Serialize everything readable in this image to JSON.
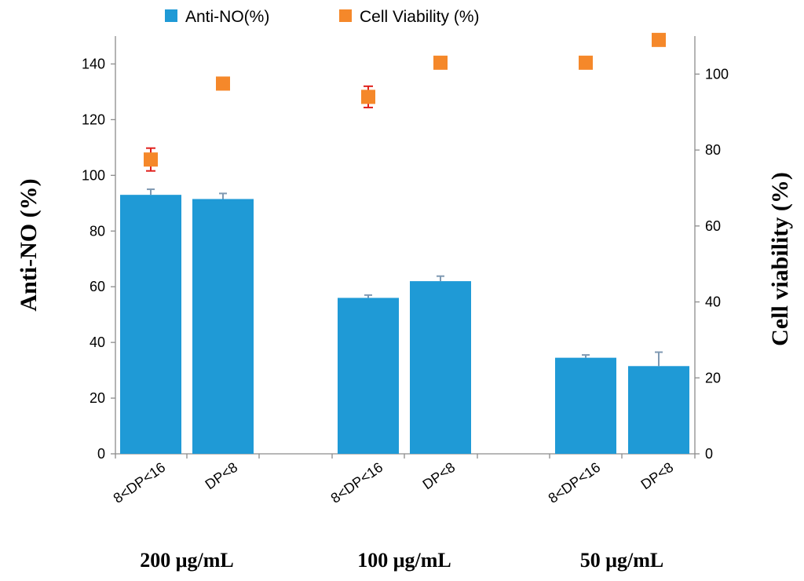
{
  "chart_data": {
    "type": "bar+scatter",
    "legend": {
      "position": "top",
      "entries": [
        {
          "label": "Anti-NO(%)",
          "color": "#1f9ad6",
          "marker": "square"
        },
        {
          "label": "Cell Viability (%)",
          "color": "#f5882a",
          "marker": "square"
        }
      ]
    },
    "categories": [
      "8<DP<16",
      "DP<8",
      "8<DP<16",
      "DP<8",
      "8<DP<16",
      "DP<8"
    ],
    "groups": [
      {
        "label": "200 μg/mL",
        "category_indices": [
          0,
          1
        ]
      },
      {
        "label": "100 μg/mL",
        "category_indices": [
          2,
          3
        ]
      },
      {
        "label": "50 μg/mL",
        "category_indices": [
          4,
          5
        ]
      }
    ],
    "series": [
      {
        "name": "Anti-NO(%)",
        "type": "bar",
        "axis": "left",
        "color": "#1f9ad6",
        "error_color": "#7f99b2",
        "values": [
          93,
          91.5,
          56,
          62,
          34.5,
          31.5
        ],
        "errors": [
          2,
          2,
          1,
          1.8,
          1,
          5
        ]
      },
      {
        "name": "Cell Viability (%)",
        "type": "scatter",
        "axis": "right",
        "color": "#f5882a",
        "error_color": "#e0201c",
        "values": [
          77.5,
          97.5,
          94,
          103,
          103,
          109
        ],
        "errors": [
          3,
          1.5,
          2.8,
          0,
          0,
          0
        ]
      }
    ],
    "y_left": {
      "label": "Anti-NO (%)",
      "ylim": [
        0,
        150
      ],
      "ticks": [
        0,
        20,
        40,
        60,
        80,
        100,
        120,
        140
      ]
    },
    "y_right": {
      "label": "Cell viability (%)",
      "ylim": [
        0,
        110
      ],
      "ticks": [
        0,
        20,
        40,
        60,
        80,
        100
      ]
    },
    "grid": false
  }
}
